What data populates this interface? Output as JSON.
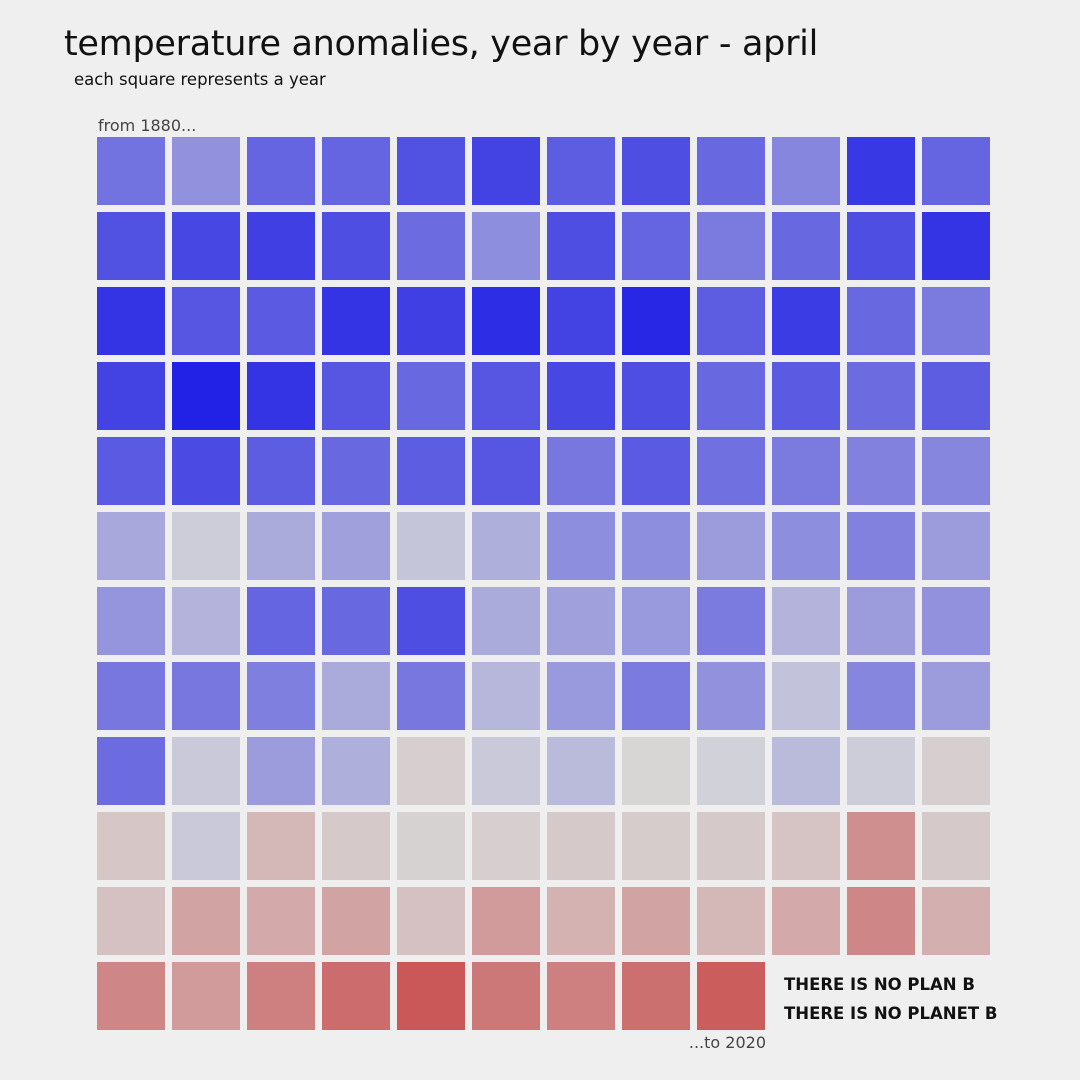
{
  "title": "temperature anomalies, year by year - april",
  "subtitle": "each square represents a year",
  "start_label": "from 1880...",
  "end_label": "...to 2020",
  "slogan": {
    "line1": "THERE IS NO PLAN B",
    "line2": "THERE IS NO PLANET B"
  },
  "colors": {
    "background": "#efefef",
    "cold": "#1e1ee6",
    "neutral": "#d8d8d8",
    "warm": "#c84646"
  },
  "chart_data": {
    "type": "heatmap",
    "title": "temperature anomalies, year by year - april",
    "subtitle": "each square represents a year",
    "start_year": 1880,
    "end_year": 2020,
    "columns": 12,
    "color_scale": {
      "cold": "#1e1ee6",
      "neutral": "#d8d8d8",
      "warm": "#c84646"
    },
    "rows": [
      {
        "label": "row-1",
        "values": [
          -0.55,
          -0.38,
          -0.62,
          -0.62,
          -0.72,
          -0.8,
          -0.66,
          -0.74,
          -0.6,
          -0.44,
          -0.86,
          -0.62
        ]
      },
      {
        "label": "row-2",
        "values": [
          -0.72,
          -0.78,
          -0.82,
          -0.74,
          -0.58,
          -0.4,
          -0.74,
          -0.62,
          -0.5,
          -0.6,
          -0.74,
          -0.88
        ]
      },
      {
        "label": "row-3",
        "values": [
          -0.88,
          -0.7,
          -0.68,
          -0.88,
          -0.82,
          -0.92,
          -0.8,
          -0.95,
          -0.66,
          -0.84,
          -0.6,
          -0.5
        ]
      },
      {
        "label": "row-4",
        "values": [
          -0.8,
          -0.98,
          -0.88,
          -0.7,
          -0.6,
          -0.7,
          -0.78,
          -0.74,
          -0.6,
          -0.68,
          -0.58,
          -0.66
        ]
      },
      {
        "label": "row-5",
        "values": [
          -0.68,
          -0.76,
          -0.66,
          -0.6,
          -0.66,
          -0.7,
          -0.52,
          -0.68,
          -0.56,
          -0.5,
          -0.46,
          -0.44
        ]
      },
      {
        "label": "row-6",
        "values": [
          -0.26,
          -0.06,
          -0.24,
          -0.3,
          -0.1,
          -0.22,
          -0.4,
          -0.4,
          -0.32,
          -0.4,
          -0.46,
          -0.32
        ]
      },
      {
        "label": "row-7",
        "values": [
          -0.36,
          -0.2,
          -0.62,
          -0.6,
          -0.74,
          -0.24,
          -0.3,
          -0.34,
          -0.5,
          -0.2,
          -0.32,
          -0.38
        ]
      },
      {
        "label": "row-8",
        "values": [
          -0.52,
          -0.52,
          -0.48,
          -0.24,
          -0.52,
          -0.18,
          -0.34,
          -0.5,
          -0.38,
          -0.12,
          -0.44,
          -0.32
        ]
      },
      {
        "label": "row-9",
        "values": [
          -0.58,
          -0.08,
          -0.32,
          -0.22,
          0.06,
          -0.08,
          -0.16,
          0.02,
          -0.04,
          -0.16,
          -0.06,
          0.06
        ]
      },
      {
        "label": "row-10",
        "values": [
          0.12,
          -0.08,
          0.22,
          0.1,
          0.04,
          0.06,
          0.1,
          0.08,
          0.1,
          0.14,
          0.5,
          0.1
        ]
      },
      {
        "label": "row-11",
        "values": [
          0.16,
          0.36,
          0.32,
          0.36,
          0.16,
          0.42,
          0.26,
          0.36,
          0.22,
          0.32,
          0.56,
          0.28
        ]
      },
      {
        "label": "row-12",
        "values": [
          0.56,
          0.42,
          0.6,
          0.74,
          0.88,
          0.66,
          0.6,
          0.72,
          0.84
        ]
      }
    ]
  }
}
